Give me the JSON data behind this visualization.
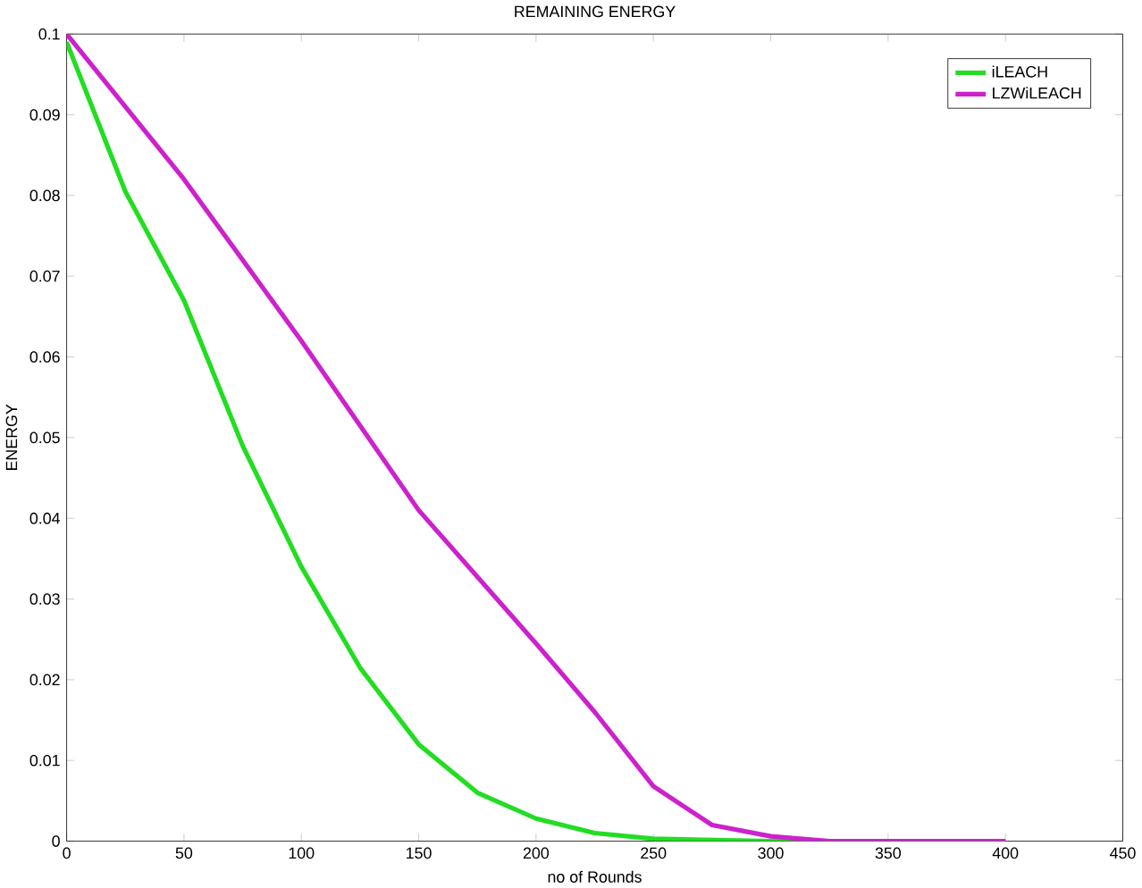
{
  "chart_data": {
    "type": "line",
    "title": "REMAINING ENERGY",
    "xlabel": "no of Rounds",
    "ylabel": "ENERGY",
    "xlim": [
      0,
      450
    ],
    "xticks": [
      0,
      50,
      100,
      150,
      200,
      250,
      300,
      350,
      400,
      450
    ],
    "ylim": [
      0,
      0.1
    ],
    "yticks": [
      0,
      0.01,
      0.02,
      0.03,
      0.04,
      0.05,
      0.06,
      0.07,
      0.08,
      0.09,
      0.1
    ],
    "grid": false,
    "legend": "top right",
    "line_style": "solid",
    "marker": "none",
    "series": [
      {
        "name": "iLEACH",
        "color": "#22dd22",
        "x": [
          0,
          25,
          50,
          75,
          100,
          125,
          150,
          175,
          200,
          225,
          250,
          300,
          350,
          400
        ],
        "values": [
          0.099,
          0.0805,
          0.067,
          0.049,
          0.034,
          0.0215,
          0.012,
          0.006,
          0.0028,
          0.001,
          0.0003,
          0,
          0,
          0
        ]
      },
      {
        "name": "LZWiLEACH",
        "color": "#cc22cc",
        "x": [
          0,
          50,
          100,
          150,
          200,
          225,
          250,
          275,
          300,
          325,
          350,
          400
        ],
        "values": [
          0.1,
          0.082,
          0.062,
          0.041,
          0.0245,
          0.016,
          0.0068,
          0.002,
          0.0006,
          0,
          0,
          0
        ]
      }
    ]
  }
}
